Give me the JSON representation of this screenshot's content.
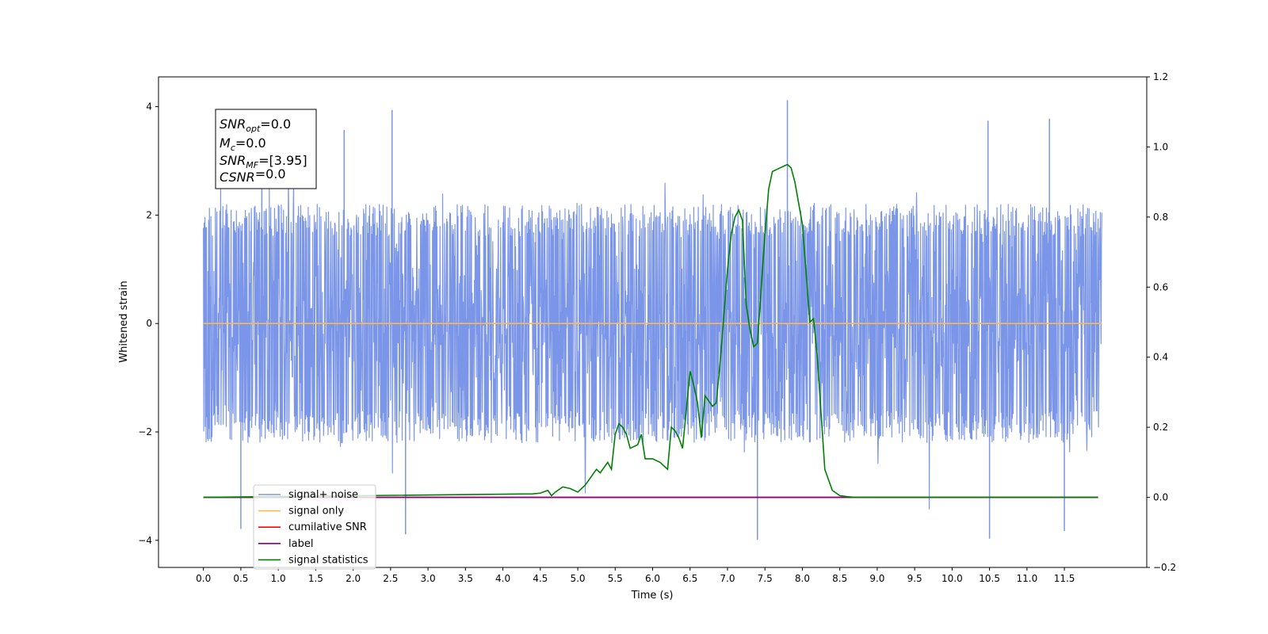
{
  "chart_data": {
    "type": "line",
    "xlabel": "Time (s)",
    "ylabel_left": "Whitened strain",
    "ylabel_right": "",
    "xlim": [
      -0.6,
      12.6
    ],
    "ylim_left": [
      -4.5,
      4.55
    ],
    "ylim_right": [
      -0.2,
      1.2
    ],
    "x_ticks": [
      "0.0",
      "0.5",
      "1.0",
      "1.5",
      "2.0",
      "2.5",
      "3.0",
      "3.5",
      "4.0",
      "4.5",
      "5.0",
      "5.5",
      "6.0",
      "6.5",
      "7.0",
      "7.5",
      "8.0",
      "8.5",
      "9.0",
      "9.5",
      "10.0",
      "10.5",
      "11.0",
      "11.5"
    ],
    "y_ticks_left": [
      "4",
      "2",
      "0",
      "−2",
      "−4"
    ],
    "y_ticks_right": [
      "1.2",
      "1.0",
      "0.8",
      "0.6",
      "0.4",
      "0.2",
      "0.0",
      "−0.2"
    ],
    "grid": false,
    "legend_position": "lower-left",
    "annotation": {
      "lines": [
        {
          "base": "SNR",
          "sub": "opt",
          "rest": "=0.0"
        },
        {
          "base": "M",
          "sub": "c",
          "rest": "=0.0"
        },
        {
          "base": "SNR",
          "sub": "MF",
          "rest": "=[3.95]"
        },
        {
          "base": "CSNR",
          "sub": "",
          "rest": "=0.0"
        }
      ]
    },
    "series": [
      {
        "name": "signal+ noise",
        "axis": "left",
        "color": "#7b96e8",
        "kind": "noise",
        "x_range": [
          0.0,
          12.0
        ],
        "envelope_typical": [
          -1.6,
          1.6
        ],
        "envelope_extreme": [
          -4.0,
          4.1
        ],
        "notable_peaks": [
          {
            "x": 0.78,
            "y": 3.79
          },
          {
            "x": 1.88,
            "y": 3.57
          },
          {
            "x": 2.52,
            "y": 3.94
          },
          {
            "x": 7.8,
            "y": 4.12
          },
          {
            "x": 10.48,
            "y": 3.74
          },
          {
            "x": 11.3,
            "y": 3.78
          },
          {
            "x": 0.5,
            "y": -3.79
          },
          {
            "x": 2.7,
            "y": -3.89
          },
          {
            "x": 7.4,
            "y": -3.99
          },
          {
            "x": 10.5,
            "y": -3.97
          },
          {
            "x": 11.5,
            "y": -3.83
          }
        ]
      },
      {
        "name": "signal only",
        "axis": "left",
        "color": "#ffb84d",
        "x": [
          0.0,
          12.0
        ],
        "y": [
          0.0,
          0.0
        ]
      },
      {
        "name": "cumilative SNR",
        "axis": "right",
        "color": "#ff0000",
        "x": [
          0.0,
          11.95
        ],
        "y": [
          0.0,
          0.0
        ]
      },
      {
        "name": "label",
        "axis": "right",
        "color": "#800080",
        "x": [
          0.0,
          11.95
        ],
        "y": [
          0.0,
          0.0
        ]
      },
      {
        "name": "signal statistics",
        "axis": "right",
        "color": "#008000",
        "x": [
          0.0,
          4.4,
          4.5,
          4.6,
          4.65,
          4.7,
          4.8,
          4.9,
          5.0,
          5.1,
          5.2,
          5.25,
          5.3,
          5.4,
          5.45,
          5.5,
          5.55,
          5.6,
          5.65,
          5.7,
          5.8,
          5.85,
          5.9,
          6.0,
          6.1,
          6.2,
          6.25,
          6.3,
          6.35,
          6.4,
          6.5,
          6.55,
          6.6,
          6.65,
          6.7,
          6.8,
          6.85,
          6.9,
          7.0,
          7.05,
          7.1,
          7.15,
          7.2,
          7.25,
          7.3,
          7.35,
          7.4,
          7.5,
          7.55,
          7.6,
          7.65,
          7.7,
          7.75,
          7.8,
          7.85,
          7.9,
          8.0,
          8.1,
          8.15,
          8.2,
          8.3,
          8.35,
          8.4,
          8.5,
          8.6,
          8.7,
          11.95
        ],
        "y": [
          0.0,
          0.01,
          0.012,
          0.02,
          0.005,
          0.015,
          0.03,
          0.025,
          0.015,
          0.035,
          0.065,
          0.08,
          0.07,
          0.1,
          0.08,
          0.18,
          0.21,
          0.2,
          0.18,
          0.14,
          0.15,
          0.18,
          0.11,
          0.11,
          0.1,
          0.08,
          0.2,
          0.19,
          0.17,
          0.14,
          0.36,
          0.32,
          0.27,
          0.17,
          0.29,
          0.26,
          0.27,
          0.38,
          0.65,
          0.75,
          0.8,
          0.82,
          0.79,
          0.55,
          0.48,
          0.43,
          0.44,
          0.75,
          0.88,
          0.93,
          0.935,
          0.94,
          0.945,
          0.95,
          0.94,
          0.9,
          0.78,
          0.5,
          0.51,
          0.4,
          0.08,
          0.05,
          0.02,
          0.005,
          0.002,
          0.0,
          0.0
        ]
      }
    ]
  }
}
